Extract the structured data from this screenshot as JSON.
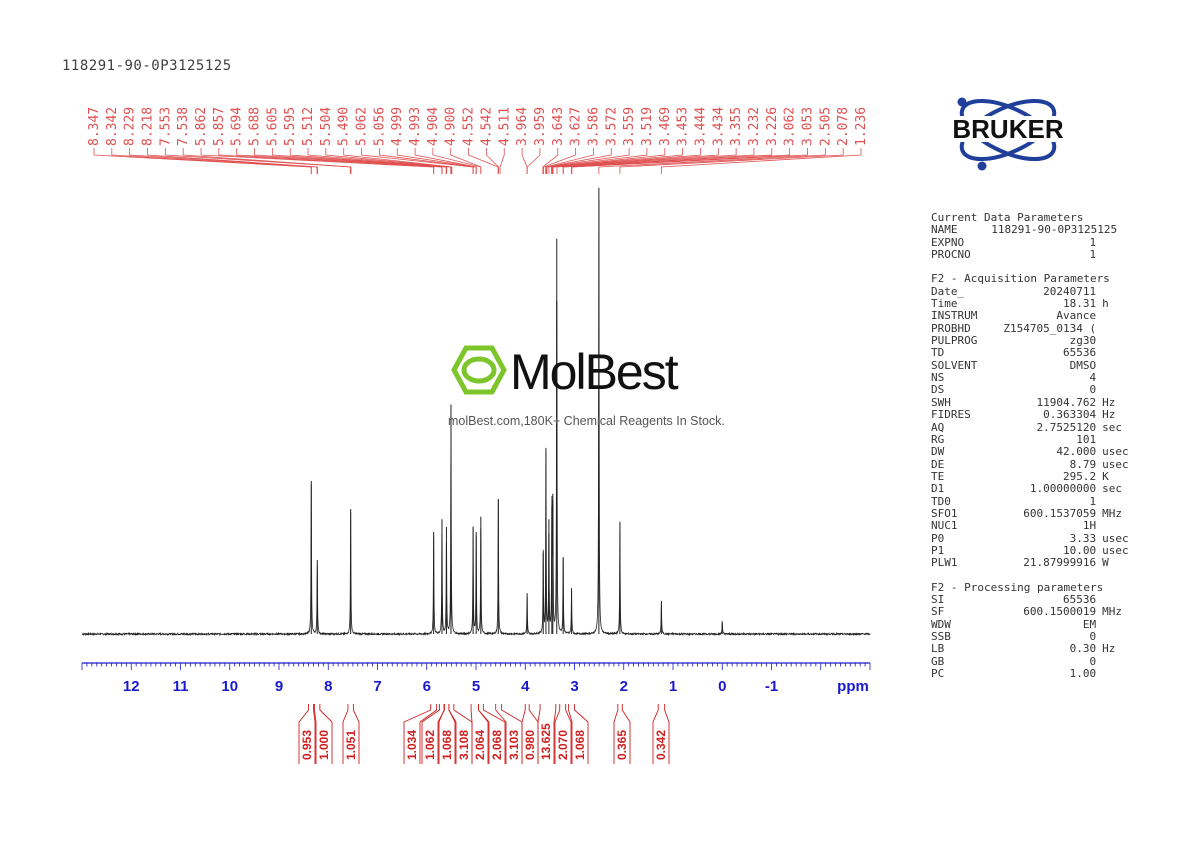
{
  "sample_title": "118291-90-0P3125125",
  "logo": {
    "brand": "BRUKER"
  },
  "watermark": {
    "name": "MolBest",
    "tagline": "molBest.com,180K+ Chemical Reagents In Stock."
  },
  "colors": {
    "peak_labels": "#e05050",
    "integrals": "#d02020",
    "axis": "#1a1acc",
    "spectrum": "#222222"
  },
  "parameters": {
    "current": {
      "title": "Current Data Parameters",
      "rows": [
        {
          "k": "NAME",
          "v": "118291-90-0P3125125",
          "u": ""
        },
        {
          "k": "EXPNO",
          "v": "1",
          "u": ""
        },
        {
          "k": "PROCNO",
          "v": "1",
          "u": ""
        }
      ]
    },
    "acquisition": {
      "title": "F2 - Acquisition Parameters",
      "rows": [
        {
          "k": "Date_",
          "v": "20240711",
          "u": ""
        },
        {
          "k": "Time",
          "v": "18.31",
          "u": "h"
        },
        {
          "k": "INSTRUM",
          "v": "Avance",
          "u": ""
        },
        {
          "k": "PROBHD",
          "v": "Z154705_0134 (",
          "u": ""
        },
        {
          "k": "PULPROG",
          "v": "zg30",
          "u": ""
        },
        {
          "k": "TD",
          "v": "65536",
          "u": ""
        },
        {
          "k": "SOLVENT",
          "v": "DMSO",
          "u": ""
        },
        {
          "k": "NS",
          "v": "4",
          "u": ""
        },
        {
          "k": "DS",
          "v": "0",
          "u": ""
        },
        {
          "k": "SWH",
          "v": "11904.762",
          "u": "Hz"
        },
        {
          "k": "FIDRES",
          "v": "0.363304",
          "u": "Hz"
        },
        {
          "k": "AQ",
          "v": "2.7525120",
          "u": "sec"
        },
        {
          "k": "RG",
          "v": "101",
          "u": ""
        },
        {
          "k": "DW",
          "v": "42.000",
          "u": "usec"
        },
        {
          "k": "DE",
          "v": "8.79",
          "u": "usec"
        },
        {
          "k": "TE",
          "v": "295.2",
          "u": "K"
        },
        {
          "k": "D1",
          "v": "1.00000000",
          "u": "sec"
        },
        {
          "k": "TD0",
          "v": "1",
          "u": ""
        },
        {
          "k": "SFO1",
          "v": "600.1537059",
          "u": "MHz"
        },
        {
          "k": "NUC1",
          "v": "1H",
          "u": ""
        },
        {
          "k": "P0",
          "v": "3.33",
          "u": "usec"
        },
        {
          "k": "P1",
          "v": "10.00",
          "u": "usec"
        },
        {
          "k": "PLW1",
          "v": "21.87999916",
          "u": "W"
        }
      ]
    },
    "processing": {
      "title": "F2 - Processing parameters",
      "rows": [
        {
          "k": "SI",
          "v": "65536",
          "u": ""
        },
        {
          "k": "SF",
          "v": "600.1500019",
          "u": "MHz"
        },
        {
          "k": "WDW",
          "v": "EM",
          "u": ""
        },
        {
          "k": "SSB",
          "v": "0",
          "u": ""
        },
        {
          "k": "LB",
          "v": "0.30",
          "u": "Hz"
        },
        {
          "k": "GB",
          "v": "0",
          "u": ""
        },
        {
          "k": "PC",
          "v": "1.00",
          "u": ""
        }
      ]
    }
  },
  "chart_data": {
    "type": "line",
    "title": "",
    "xlabel": "ppm",
    "ylabel": "",
    "x_reversed": true,
    "xlim": [
      13.0,
      -3.0
    ],
    "xticks": [
      {
        "value": 12,
        "label": "12"
      },
      {
        "value": 11,
        "label": "11"
      },
      {
        "value": 10,
        "label": "10"
      },
      {
        "value": 9,
        "label": "9"
      },
      {
        "value": 8,
        "label": "8"
      },
      {
        "value": 7,
        "label": "7"
      },
      {
        "value": 6,
        "label": "6"
      },
      {
        "value": 5,
        "label": "5"
      },
      {
        "value": 4,
        "label": "4"
      },
      {
        "value": 3,
        "label": "3"
      },
      {
        "value": 2,
        "label": "2"
      },
      {
        "value": 1,
        "label": "1"
      },
      {
        "value": 0,
        "label": "0"
      },
      {
        "value": -1,
        "label": "-1"
      }
    ],
    "peak_labels": [
      "8.347",
      "8.342",
      "8.229",
      "8.218",
      "7.553",
      "7.538",
      "5.862",
      "5.857",
      "5.694",
      "5.688",
      "5.605",
      "5.595",
      "5.512",
      "5.504",
      "5.490",
      "5.062",
      "5.056",
      "4.999",
      "4.993",
      "4.904",
      "4.900",
      "4.552",
      "4.542",
      "4.511",
      "3.964",
      "3.959",
      "3.643",
      "3.627",
      "3.586",
      "3.572",
      "3.559",
      "3.519",
      "3.469",
      "3.453",
      "3.444",
      "3.434",
      "3.355",
      "3.232",
      "3.226",
      "3.062",
      "3.053",
      "2.505",
      "2.078",
      "1.236"
    ],
    "peaks": [
      {
        "ppm": 8.345,
        "height": 0.6
      },
      {
        "ppm": 8.223,
        "height": 0.29
      },
      {
        "ppm": 7.545,
        "height": 0.49
      },
      {
        "ppm": 5.86,
        "height": 0.4
      },
      {
        "ppm": 5.691,
        "height": 0.45
      },
      {
        "ppm": 5.6,
        "height": 0.42
      },
      {
        "ppm": 5.508,
        "height": 0.9
      },
      {
        "ppm": 5.059,
        "height": 0.42
      },
      {
        "ppm": 4.996,
        "height": 0.4
      },
      {
        "ppm": 4.902,
        "height": 0.46
      },
      {
        "ppm": 4.547,
        "height": 0.53
      },
      {
        "ppm": 3.962,
        "height": 0.16
      },
      {
        "ppm": 3.635,
        "height": 0.32
      },
      {
        "ppm": 3.58,
        "height": 0.73
      },
      {
        "ppm": 3.52,
        "height": 0.45
      },
      {
        "ppm": 3.46,
        "height": 0.5
      },
      {
        "ppm": 3.44,
        "height": 0.55
      },
      {
        "ppm": 3.36,
        "height": 1.55
      },
      {
        "ppm": 3.23,
        "height": 0.3
      },
      {
        "ppm": 3.06,
        "height": 0.18
      },
      {
        "ppm": 2.505,
        "height": 1.75
      },
      {
        "ppm": 2.078,
        "height": 0.44
      },
      {
        "ppm": 1.236,
        "height": 0.13
      },
      {
        "ppm": 0.0,
        "height": 0.05
      }
    ],
    "integrals": [
      {
        "value": "0.953",
        "from": 8.4,
        "to": 8.3
      },
      {
        "value": "1.000",
        "from": 8.28,
        "to": 8.17
      },
      {
        "value": "1.051",
        "from": 7.6,
        "to": 7.49
      },
      {
        "value": "1.034",
        "from": 5.92,
        "to": 5.8
      },
      {
        "value": "1.062",
        "from": 5.74,
        "to": 5.64
      },
      {
        "value": "1.068",
        "from": 5.65,
        "to": 5.55
      },
      {
        "value": "3.108",
        "from": 5.55,
        "to": 5.45
      },
      {
        "value": "2.064",
        "from": 5.1,
        "to": 4.95
      },
      {
        "value": "2.068",
        "from": 4.95,
        "to": 4.85
      },
      {
        "value": "3.103",
        "from": 4.6,
        "to": 4.48
      },
      {
        "value": "0.980",
        "from": 4.0,
        "to": 3.92
      },
      {
        "value": "13.625",
        "from": 3.7,
        "to": 3.38
      },
      {
        "value": "2.070",
        "from": 3.3,
        "to": 3.18
      },
      {
        "value": "1.068",
        "from": 3.12,
        "to": 3.0
      },
      {
        "value": "0.365",
        "from": 2.12,
        "to": 2.03
      },
      {
        "value": "0.342",
        "from": 1.3,
        "to": 1.17
      }
    ]
  }
}
